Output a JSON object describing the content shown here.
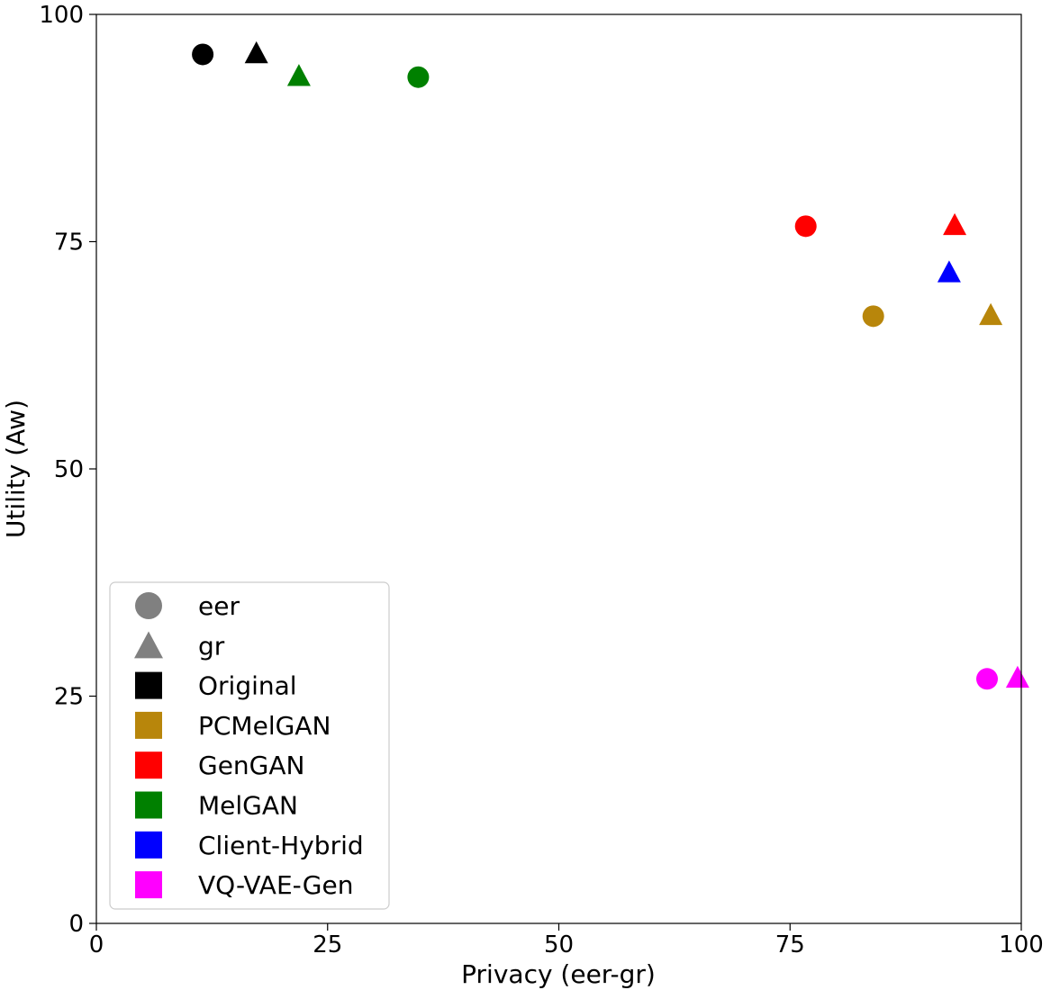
{
  "chart_data": {
    "type": "scatter",
    "title": "",
    "xlabel": "Privacy (eer-gr)",
    "ylabel": "Utility (Aw)",
    "xlim": [
      0,
      100
    ],
    "ylim": [
      0,
      100
    ],
    "xticks": [
      "0",
      "25",
      "50",
      "75",
      "100"
    ],
    "yticks": [
      "0",
      "25",
      "50",
      "75",
      "100"
    ],
    "grid": false,
    "legend_position": "lower-left",
    "marker_legend": [
      {
        "name": "eer",
        "marker": "circle"
      },
      {
        "name": "gr",
        "marker": "triangle"
      }
    ],
    "series": [
      {
        "name": "Original",
        "color": "#000000",
        "eer": [
          11.5,
          95.6
        ],
        "gr": [
          17.3,
          95.6
        ]
      },
      {
        "name": "PCMelGAN",
        "color": "#b8860b",
        "eer": [
          84.0,
          66.8
        ],
        "gr": [
          96.7,
          66.8
        ]
      },
      {
        "name": "GenGAN",
        "color": "#ff0000",
        "eer": [
          76.7,
          76.7
        ],
        "gr": [
          92.8,
          76.7
        ]
      },
      {
        "name": "MelGAN",
        "color": "#008000",
        "eer": [
          34.8,
          93.1
        ],
        "gr": [
          21.9,
          93.1
        ]
      },
      {
        "name": "Client-Hybrid",
        "color": "#0000ff",
        "eer": null,
        "gr": [
          92.2,
          71.5
        ]
      },
      {
        "name": "VQ-VAE-Gen",
        "color": "#ff00ff",
        "eer": [
          96.3,
          26.9
        ],
        "gr": [
          99.6,
          26.9
        ]
      }
    ]
  }
}
